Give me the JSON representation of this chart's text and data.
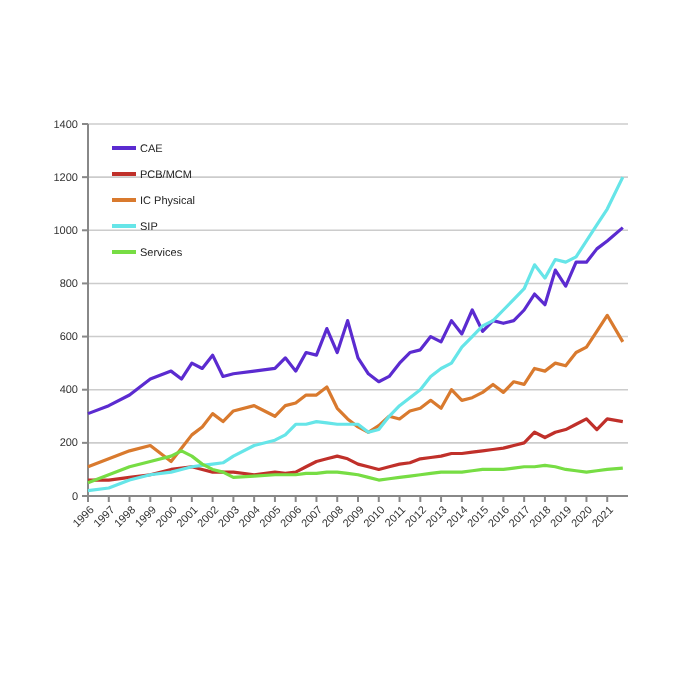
{
  "chart_data": {
    "type": "line",
    "x": [
      1996,
      1997,
      1998,
      1999,
      2000,
      2000.5,
      2001,
      2001.5,
      2002,
      2002.5,
      2003,
      2004,
      2005,
      2005.5,
      2006,
      2006.5,
      2007,
      2007.5,
      2008,
      2008.5,
      2009,
      2009.5,
      2010,
      2010.5,
      2011,
      2011.5,
      2012,
      2012.5,
      2013,
      2013.5,
      2014,
      2014.5,
      2015,
      2015.5,
      2016,
      2016.5,
      2017,
      2017.5,
      2018,
      2018.5,
      2019,
      2019.5,
      2020,
      2020.5,
      2021,
      2021.75
    ],
    "series": [
      {
        "name": "CAE",
        "color": "#5b2bd0",
        "values": [
          310,
          340,
          380,
          440,
          470,
          440,
          500,
          480,
          530,
          450,
          460,
          470,
          480,
          520,
          470,
          540,
          530,
          630,
          540,
          660,
          520,
          460,
          430,
          450,
          500,
          540,
          550,
          600,
          580,
          660,
          610,
          700,
          620,
          660,
          650,
          660,
          700,
          760,
          720,
          850,
          790,
          880,
          880,
          930,
          960,
          1010
        ]
      },
      {
        "name": "PCB/MCM",
        "color": "#c0302a",
        "values": [
          60,
          60,
          70,
          80,
          100,
          105,
          110,
          100,
          90,
          90,
          90,
          80,
          90,
          85,
          90,
          110,
          130,
          140,
          150,
          140,
          120,
          110,
          100,
          110,
          120,
          125,
          140,
          145,
          150,
          160,
          160,
          165,
          170,
          175,
          180,
          190,
          200,
          240,
          220,
          240,
          250,
          270,
          290,
          250,
          290,
          280
        ]
      },
      {
        "name": "IC Physical",
        "color": "#d97a2e",
        "values": [
          110,
          140,
          170,
          190,
          130,
          180,
          230,
          260,
          310,
          280,
          320,
          340,
          300,
          340,
          350,
          380,
          380,
          410,
          330,
          290,
          260,
          240,
          265,
          300,
          290,
          320,
          330,
          360,
          330,
          400,
          360,
          370,
          390,
          420,
          390,
          430,
          420,
          480,
          470,
          500,
          490,
          540,
          560,
          620,
          680,
          580
        ]
      },
      {
        "name": "SIP",
        "color": "#66e5e8",
        "values": [
          20,
          30,
          60,
          80,
          90,
          100,
          110,
          115,
          120,
          125,
          150,
          190,
          210,
          230,
          270,
          270,
          280,
          275,
          270,
          270,
          270,
          240,
          250,
          300,
          340,
          370,
          400,
          450,
          480,
          500,
          560,
          600,
          640,
          660,
          700,
          740,
          780,
          870,
          820,
          890,
          880,
          900,
          960,
          1020,
          1080,
          1200
        ]
      },
      {
        "name": "Services",
        "color": "#77dd44",
        "values": [
          50,
          80,
          110,
          130,
          150,
          170,
          150,
          120,
          100,
          90,
          70,
          75,
          80,
          80,
          80,
          85,
          85,
          90,
          90,
          85,
          80,
          70,
          60,
          65,
          70,
          75,
          80,
          85,
          90,
          90,
          90,
          95,
          100,
          100,
          100,
          105,
          110,
          110,
          115,
          110,
          100,
          95,
          90,
          95,
          100,
          105
        ]
      }
    ],
    "xlim": [
      1996,
      2022
    ],
    "xticks": [
      1996,
      1997,
      1998,
      1999,
      2000,
      2001,
      2002,
      2003,
      2004,
      2005,
      2006,
      2007,
      2008,
      2009,
      2010,
      2011,
      2012,
      2013,
      2014,
      2015,
      2016,
      2017,
      2018,
      2019,
      2020,
      2021
    ],
    "ylim": [
      0,
      1400
    ],
    "yticks": [
      0,
      200,
      400,
      600,
      800,
      1000,
      1200,
      1400
    ],
    "grid": "y",
    "legend": "top left"
  }
}
